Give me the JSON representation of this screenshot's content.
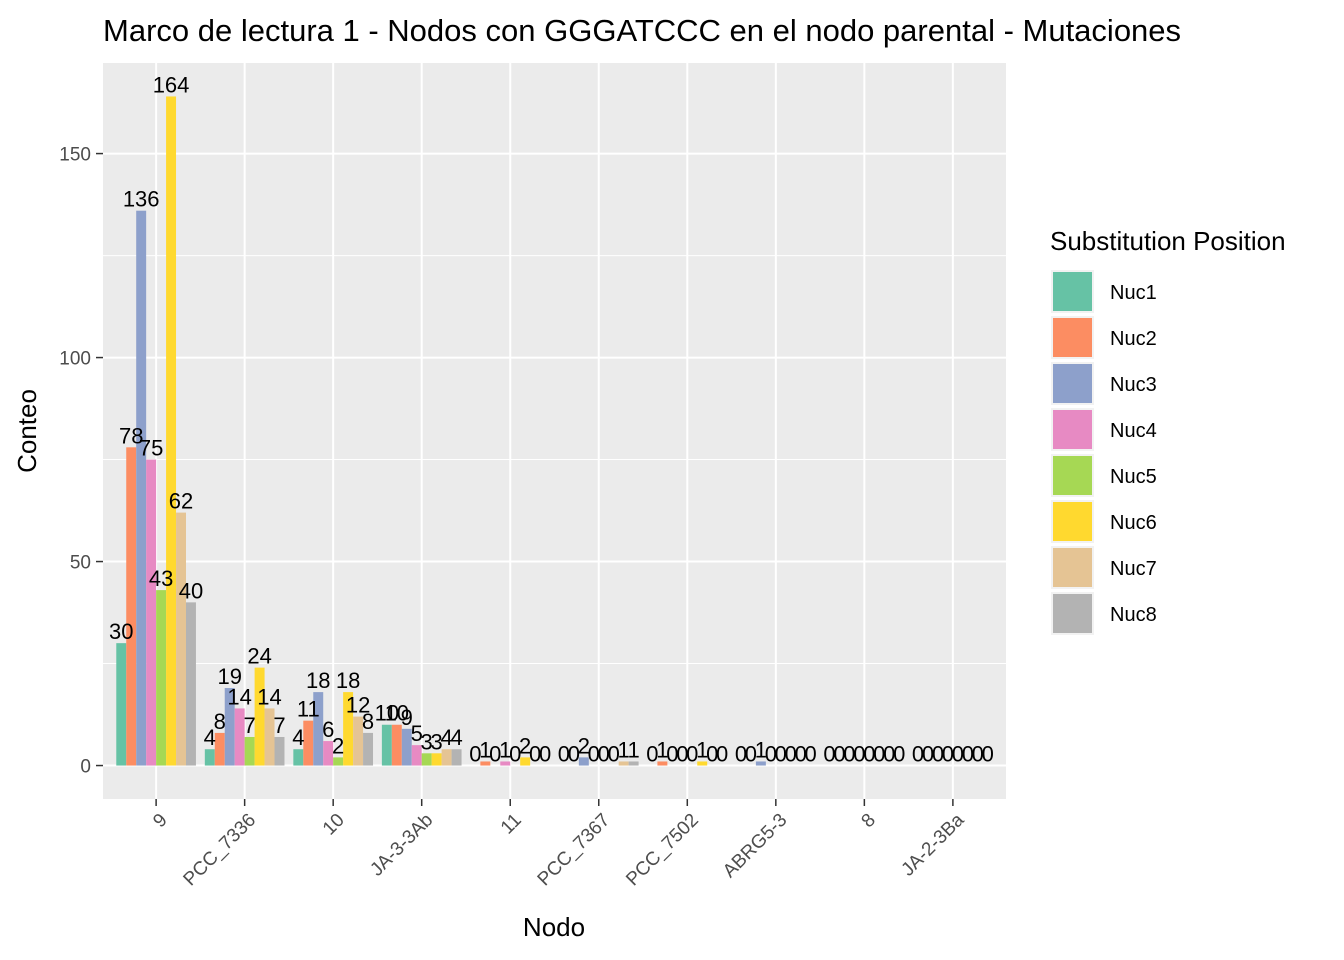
{
  "chart_data": {
    "type": "bar",
    "title": "Marco de lectura 1 - Nodos con GGGATCCC en el nodo parental - Mutaciones",
    "xlabel": "Nodo",
    "ylabel": "Conteo",
    "ylim": [
      -8.2,
      172.2
    ],
    "yticks": [
      0,
      50,
      100,
      150
    ],
    "categories": [
      "9",
      "PCC_7336",
      "10",
      "JA-3-3Ab",
      "11",
      "PCC_7367",
      "PCC_7502",
      "ABRG5-3",
      "8",
      "JA-2-3Ba"
    ],
    "legend_title": "Substitution Position",
    "legend_position": "right",
    "grid": true,
    "series": [
      {
        "name": "Nuc1",
        "color": "#66C2A5",
        "values": [
          30,
          4,
          4,
          10,
          0,
          0,
          0,
          0,
          0,
          0
        ]
      },
      {
        "name": "Nuc2",
        "color": "#FC8D62",
        "values": [
          78,
          8,
          11,
          10,
          1,
          0,
          1,
          0,
          0,
          0
        ]
      },
      {
        "name": "Nuc3",
        "color": "#8DA0CB",
        "values": [
          136,
          19,
          18,
          9,
          0,
          2,
          0,
          1,
          0,
          0
        ]
      },
      {
        "name": "Nuc4",
        "color": "#E78AC3",
        "values": [
          75,
          14,
          6,
          5,
          1,
          0,
          0,
          0,
          0,
          0
        ]
      },
      {
        "name": "Nuc5",
        "color": "#A6D854",
        "values": [
          43,
          7,
          2,
          3,
          0,
          0,
          0,
          0,
          0,
          0
        ]
      },
      {
        "name": "Nuc6",
        "color": "#FFD92F",
        "values": [
          164,
          24,
          18,
          3,
          2,
          0,
          1,
          0,
          0,
          0
        ]
      },
      {
        "name": "Nuc7",
        "color": "#E5C494",
        "values": [
          62,
          14,
          12,
          4,
          0,
          1,
          0,
          0,
          0,
          0
        ]
      },
      {
        "name": "Nuc8",
        "color": "#B3B3B3",
        "values": [
          40,
          7,
          8,
          4,
          0,
          1,
          0,
          0,
          0,
          0
        ]
      }
    ]
  }
}
